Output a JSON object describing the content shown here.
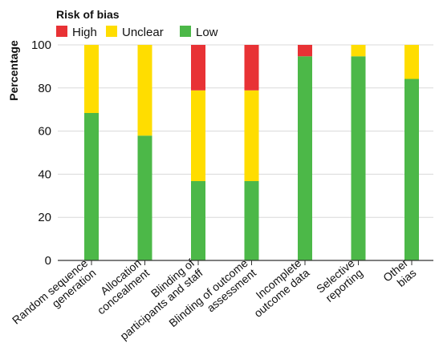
{
  "chart_data": {
    "type": "bar",
    "stacked": true,
    "legend_title": "Risk of bias",
    "legend_position": "top-left",
    "ylabel": "Percentage",
    "xlabel": "",
    "ylim": [
      0,
      100
    ],
    "yticks": [
      0,
      20,
      40,
      60,
      80,
      100
    ],
    "grid": "horizontal",
    "categories": [
      [
        "Random sequence",
        "generation"
      ],
      [
        "Allocation",
        "concealment"
      ],
      [
        "Blinding of",
        "participants and staff"
      ],
      [
        "Blinding of outcome",
        "assessment"
      ],
      [
        "Incomplete",
        "outcome data"
      ],
      [
        "Selective",
        "reporting"
      ],
      [
        "Other",
        "bias"
      ]
    ],
    "series": [
      {
        "name": "Low",
        "color": "#4cb848",
        "values": [
          68.4,
          57.9,
          36.8,
          36.8,
          94.7,
          94.7,
          84.2
        ]
      },
      {
        "name": "Unclear",
        "color": "#ffdd00",
        "values": [
          31.6,
          42.1,
          42.1,
          42.1,
          0,
          5.3,
          15.8
        ]
      },
      {
        "name": "High",
        "color": "#e83235",
        "values": [
          0,
          0,
          21.1,
          21.1,
          5.3,
          0,
          0
        ]
      }
    ],
    "legend_order": [
      "High",
      "Unclear",
      "Low"
    ]
  }
}
